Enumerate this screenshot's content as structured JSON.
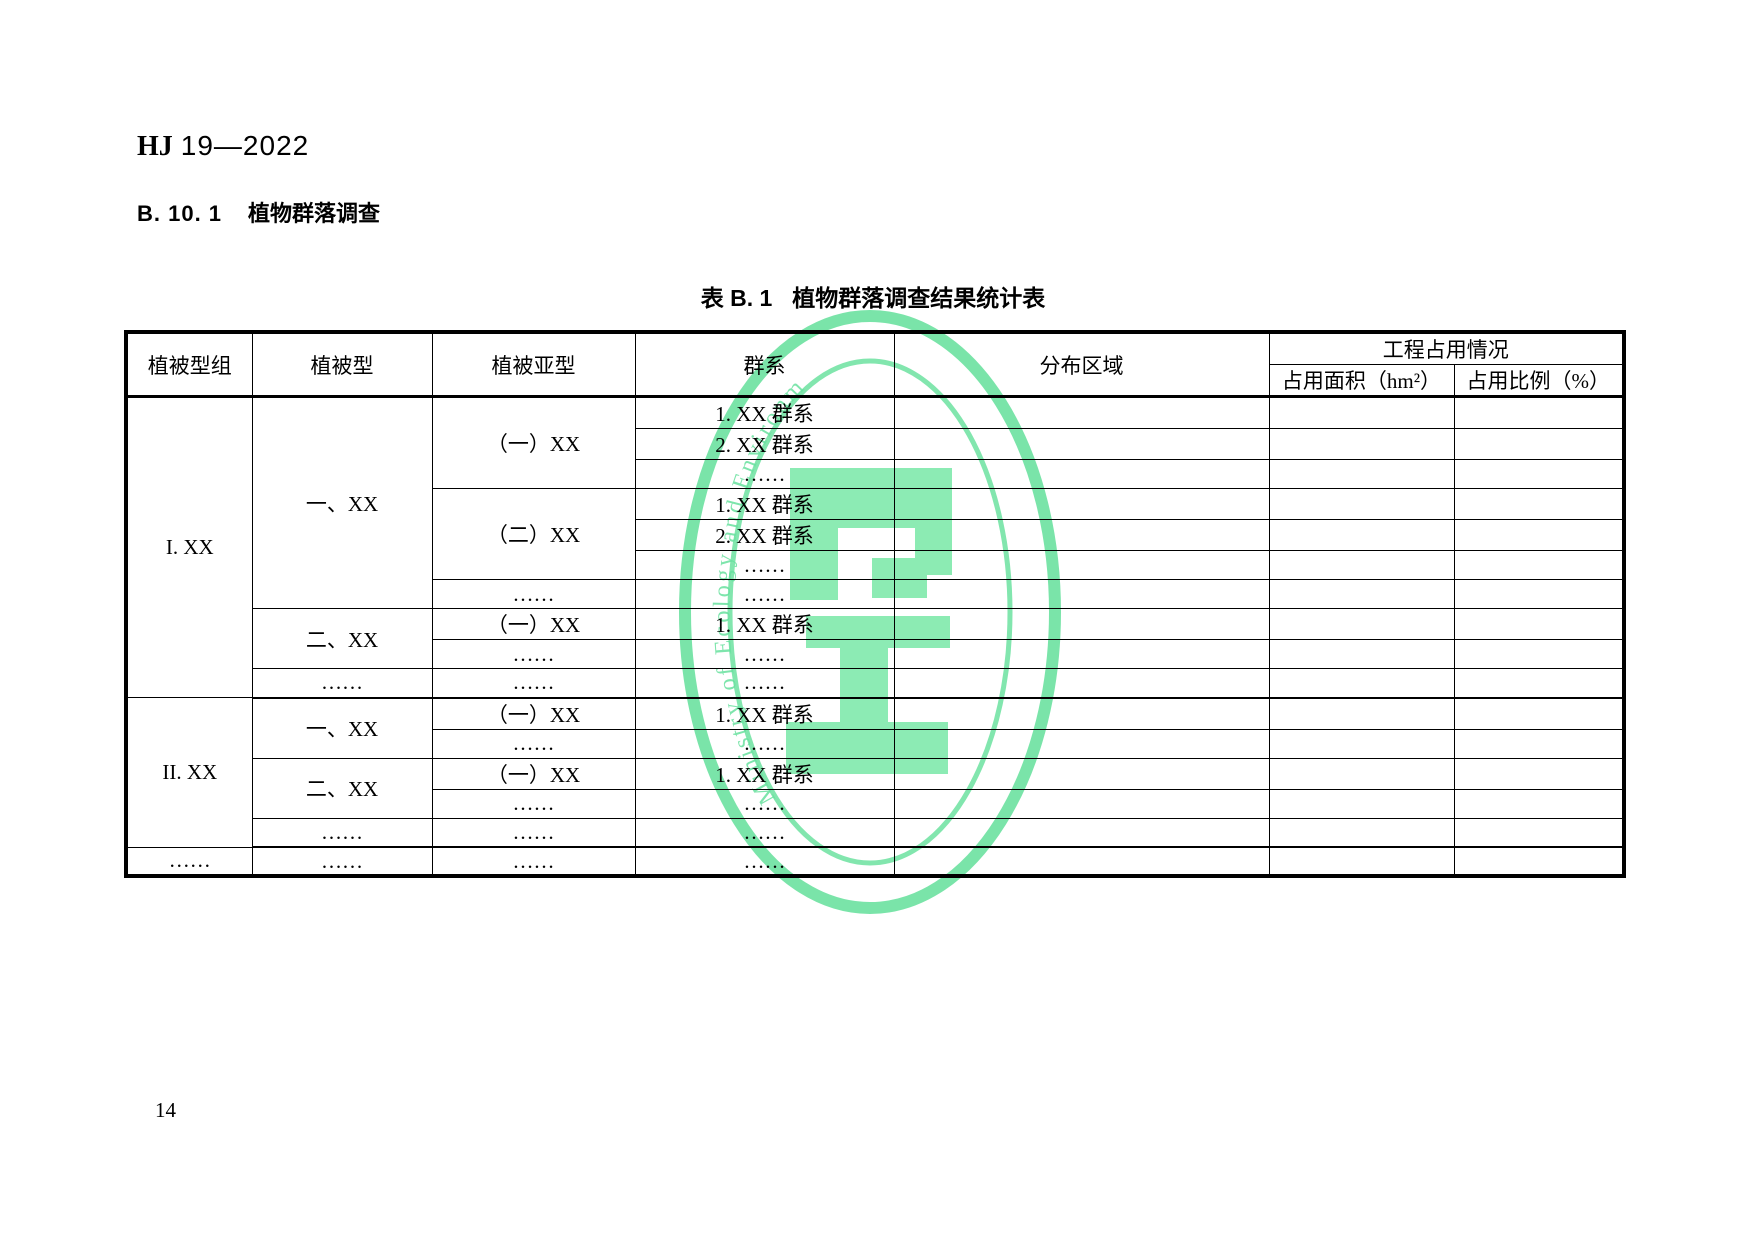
{
  "page": {
    "standard_code": {
      "label": "HJ",
      "number": "19—2022"
    },
    "section_heading": {
      "number": "B. 10. 1",
      "title": "植物群落调查"
    },
    "table_caption": {
      "label": "表 B. 1",
      "title": "植物群落调查结果统计表"
    },
    "page_number": "14"
  },
  "table": {
    "headers": {
      "veg_type_group": "植被型组",
      "veg_type": "植被型",
      "veg_subtype": "植被亚型",
      "formation": "群系",
      "distribution_area": "分布区域",
      "occupation_group": "工程占用情况",
      "occupied_area": "占用面积（hm²）",
      "occupied_ratio": "占用比例（%）"
    },
    "body": [
      {
        "cells": [
          {
            "t": "I. XX",
            "rs": 10
          },
          {
            "t": "一、XX",
            "rs": 7
          },
          {
            "t": "（一）XX",
            "rs": 3
          },
          {
            "t": "1. XX 群系"
          },
          {
            "t": ""
          },
          {
            "t": ""
          },
          {
            "t": ""
          }
        ]
      },
      {
        "cells": [
          {
            "t": "2. XX 群系"
          },
          {
            "t": ""
          },
          {
            "t": ""
          },
          {
            "t": ""
          }
        ]
      },
      {
        "cells": [
          {
            "t": "……"
          },
          {
            "t": ""
          },
          {
            "t": ""
          },
          {
            "t": ""
          }
        ]
      },
      {
        "cells": [
          {
            "t": "（二）XX",
            "rs": 3
          },
          {
            "t": "1. XX 群系"
          },
          {
            "t": ""
          },
          {
            "t": ""
          },
          {
            "t": ""
          }
        ]
      },
      {
        "cells": [
          {
            "t": "2. XX 群系"
          },
          {
            "t": ""
          },
          {
            "t": ""
          },
          {
            "t": ""
          }
        ]
      },
      {
        "cells": [
          {
            "t": "……"
          },
          {
            "t": ""
          },
          {
            "t": ""
          },
          {
            "t": ""
          }
        ]
      },
      {
        "cells": [
          {
            "t": "……"
          },
          {
            "t": "……"
          },
          {
            "t": ""
          },
          {
            "t": ""
          },
          {
            "t": ""
          }
        ]
      },
      {
        "cells": [
          {
            "t": "二、XX",
            "rs": 2
          },
          {
            "t": "（一）XX"
          },
          {
            "t": "1. XX 群系"
          },
          {
            "t": ""
          },
          {
            "t": ""
          },
          {
            "t": ""
          }
        ]
      },
      {
        "cells": [
          {
            "t": "……"
          },
          {
            "t": "……"
          },
          {
            "t": ""
          },
          {
            "t": ""
          },
          {
            "t": ""
          }
        ]
      },
      {
        "section_end": true,
        "cells": [
          {
            "t": "……"
          },
          {
            "t": "……"
          },
          {
            "t": "……"
          },
          {
            "t": ""
          },
          {
            "t": ""
          },
          {
            "t": ""
          }
        ]
      },
      {
        "cells": [
          {
            "t": "II. XX",
            "rs": 5
          },
          {
            "t": "一、XX",
            "rs": 2
          },
          {
            "t": "（一）XX"
          },
          {
            "t": "1. XX 群系"
          },
          {
            "t": ""
          },
          {
            "t": ""
          },
          {
            "t": ""
          }
        ]
      },
      {
        "cells": [
          {
            "t": "……"
          },
          {
            "t": "……"
          },
          {
            "t": ""
          },
          {
            "t": ""
          },
          {
            "t": ""
          }
        ]
      },
      {
        "cells": [
          {
            "t": "二、XX",
            "rs": 2
          },
          {
            "t": "（一）XX"
          },
          {
            "t": "1. XX 群系"
          },
          {
            "t": ""
          },
          {
            "t": ""
          },
          {
            "t": ""
          }
        ]
      },
      {
        "cells": [
          {
            "t": "……"
          },
          {
            "t": "……"
          },
          {
            "t": ""
          },
          {
            "t": ""
          },
          {
            "t": ""
          }
        ]
      },
      {
        "section_end": true,
        "cells": [
          {
            "t": "……"
          },
          {
            "t": "……"
          },
          {
            "t": "……"
          },
          {
            "t": ""
          },
          {
            "t": ""
          },
          {
            "t": ""
          }
        ]
      },
      {
        "cells": [
          {
            "t": "……"
          },
          {
            "t": "……"
          },
          {
            "t": "……"
          },
          {
            "t": "……"
          },
          {
            "t": ""
          },
          {
            "t": ""
          },
          {
            "t": ""
          }
        ]
      }
    ]
  },
  "watermark": {
    "arc_text": "Ministry of Ecology and Environment",
    "ring_color": "#57dd92",
    "emblem_color": "#74e7a4",
    "text_color": "#52dc90"
  }
}
